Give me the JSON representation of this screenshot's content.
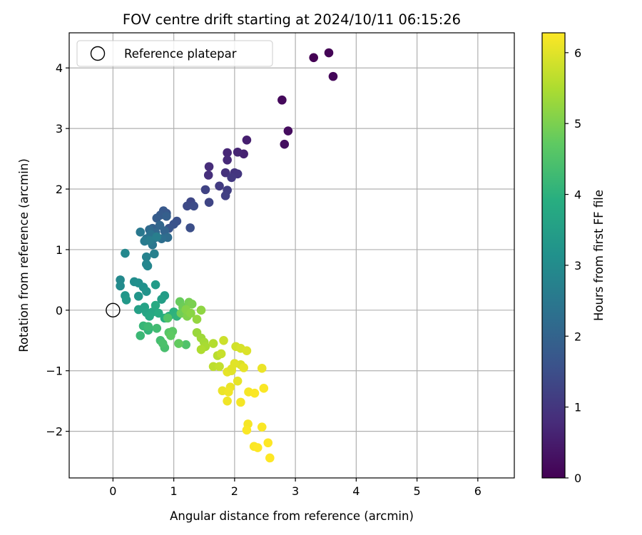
{
  "chart_data": {
    "type": "scatter",
    "title": "FOV centre drift starting at 2024/10/11 06:15:26",
    "xlabel": "Angular distance from reference (arcmin)",
    "ylabel": "Rotation from reference (arcmin)",
    "xlim": [
      -0.72,
      6.6
    ],
    "ylim": [
      -2.77,
      4.58
    ],
    "xticks": [
      0,
      1,
      2,
      3,
      4,
      5,
      6
    ],
    "yticks": [
      -2,
      -1,
      0,
      1,
      2,
      3,
      4
    ],
    "xtick_labels": [
      "0",
      "1",
      "2",
      "3",
      "4",
      "5",
      "6"
    ],
    "ytick_labels": [
      "−2",
      "−1",
      "0",
      "1",
      "2",
      "3",
      "4"
    ],
    "grid": true,
    "legend": {
      "placement": "top-left",
      "entries": [
        {
          "label": "Reference platepar",
          "marker": "open-circle"
        }
      ]
    },
    "reference_point": {
      "x": 0,
      "y": 0
    },
    "colorbar": {
      "label": "Hours from first FF file",
      "colormap": "viridis",
      "range": [
        0,
        6.28
      ],
      "ticks": [
        0,
        1,
        2,
        3,
        4,
        5,
        6
      ],
      "tick_labels": [
        "0",
        "1",
        "2",
        "3",
        "4",
        "5",
        "6"
      ]
    },
    "colors": {
      "viridis": [
        "#440154",
        "#472c7a",
        "#3b528b",
        "#2c728e",
        "#21918c",
        "#28ae80",
        "#5ec962",
        "#addc30",
        "#fde725"
      ]
    },
    "points": [
      [
        3.3,
        4.17,
        0.0
      ],
      [
        3.55,
        4.25,
        0.05
      ],
      [
        3.62,
        3.86,
        0.1
      ],
      [
        2.78,
        3.47,
        0.15
      ],
      [
        2.88,
        2.96,
        0.2
      ],
      [
        2.82,
        2.74,
        0.25
      ],
      [
        2.2,
        2.81,
        0.55
      ],
      [
        2.15,
        2.58,
        0.6
      ],
      [
        2.05,
        2.61,
        0.65
      ],
      [
        1.88,
        2.6,
        0.7
      ],
      [
        1.88,
        2.48,
        0.75
      ],
      [
        1.58,
        2.37,
        0.8
      ],
      [
        1.57,
        2.23,
        0.85
      ],
      [
        1.85,
        2.27,
        0.9
      ],
      [
        2.0,
        2.27,
        0.95
      ],
      [
        2.05,
        2.25,
        1.0
      ],
      [
        1.95,
        2.19,
        1.05
      ],
      [
        1.75,
        2.05,
        1.1
      ],
      [
        1.88,
        1.98,
        1.15
      ],
      [
        1.85,
        1.89,
        1.2
      ],
      [
        1.52,
        1.99,
        1.25
      ],
      [
        1.58,
        1.78,
        1.3
      ],
      [
        1.28,
        1.79,
        1.35
      ],
      [
        1.22,
        1.72,
        1.4
      ],
      [
        1.33,
        1.72,
        1.45
      ],
      [
        1.27,
        1.36,
        1.5
      ],
      [
        1.05,
        1.47,
        1.55
      ],
      [
        1.0,
        1.42,
        1.6
      ],
      [
        0.92,
        1.35,
        1.65
      ],
      [
        0.88,
        1.6,
        1.7
      ],
      [
        0.83,
        1.64,
        1.75
      ],
      [
        0.78,
        1.57,
        1.8
      ],
      [
        0.72,
        1.52,
        1.85
      ],
      [
        0.88,
        1.55,
        1.9
      ],
      [
        0.65,
        1.35,
        1.95
      ],
      [
        0.85,
        1.31,
        2.0
      ],
      [
        0.77,
        1.4,
        2.05
      ],
      [
        0.7,
        1.28,
        2.1
      ],
      [
        0.6,
        1.33,
        2.15
      ],
      [
        0.9,
        1.2,
        2.2
      ],
      [
        0.8,
        1.18,
        2.25
      ],
      [
        0.7,
        1.2,
        2.3
      ],
      [
        0.62,
        1.25,
        2.35
      ],
      [
        0.55,
        1.18,
        2.4
      ],
      [
        0.65,
        1.08,
        2.45
      ],
      [
        0.45,
        1.29,
        2.5
      ],
      [
        0.52,
        1.14,
        2.55
      ],
      [
        0.6,
        1.15,
        2.6
      ],
      [
        0.72,
        1.21,
        2.65
      ],
      [
        0.68,
        0.93,
        2.7
      ],
      [
        0.55,
        0.88,
        2.75
      ],
      [
        0.55,
        0.76,
        2.8
      ],
      [
        0.57,
        0.73,
        2.85
      ],
      [
        0.2,
        0.94,
        2.9
      ],
      [
        0.12,
        0.5,
        2.95
      ],
      [
        0.12,
        0.4,
        3.0
      ],
      [
        0.35,
        0.47,
        3.05
      ],
      [
        0.42,
        0.45,
        3.1
      ],
      [
        0.5,
        0.38,
        3.15
      ],
      [
        0.55,
        0.31,
        3.2
      ],
      [
        0.42,
        0.23,
        3.25
      ],
      [
        0.2,
        0.24,
        3.3
      ],
      [
        0.22,
        0.17,
        3.35
      ],
      [
        0.7,
        0.42,
        3.4
      ],
      [
        0.85,
        0.24,
        3.45
      ],
      [
        0.8,
        0.18,
        3.5
      ],
      [
        0.42,
        0.01,
        3.55
      ],
      [
        0.52,
        0.05,
        3.6
      ],
      [
        0.55,
        -0.04,
        3.65
      ],
      [
        0.65,
        -0.03,
        3.7
      ],
      [
        0.6,
        -0.1,
        3.75
      ],
      [
        0.7,
        0.08,
        3.8
      ],
      [
        0.75,
        -0.05,
        3.85
      ],
      [
        0.85,
        -0.13,
        3.9
      ],
      [
        0.92,
        -0.1,
        3.95
      ],
      [
        1.0,
        -0.03,
        4.0
      ],
      [
        1.05,
        -0.1,
        4.05
      ],
      [
        0.58,
        -0.33,
        4.1
      ],
      [
        0.5,
        -0.26,
        4.15
      ],
      [
        0.45,
        -0.42,
        4.2
      ],
      [
        0.58,
        -0.27,
        4.25
      ],
      [
        0.72,
        -0.3,
        4.3
      ],
      [
        0.78,
        -0.5,
        4.35
      ],
      [
        0.85,
        -0.62,
        4.4
      ],
      [
        0.82,
        -0.55,
        4.45
      ],
      [
        1.2,
        -0.57,
        4.5
      ],
      [
        0.9,
        -0.13,
        4.55
      ],
      [
        0.92,
        -0.37,
        4.6
      ],
      [
        0.98,
        -0.35,
        4.65
      ],
      [
        0.95,
        -0.42,
        4.7
      ],
      [
        1.08,
        -0.55,
        4.75
      ],
      [
        1.1,
        0.14,
        4.8
      ],
      [
        1.15,
        0.05,
        4.85
      ],
      [
        1.12,
        -0.05,
        4.9
      ],
      [
        1.25,
        0.13,
        4.95
      ],
      [
        1.3,
        0.1,
        5.0
      ],
      [
        1.22,
        -0.1,
        5.05
      ],
      [
        1.2,
        0.01,
        5.1
      ],
      [
        1.28,
        -0.05,
        5.15
      ],
      [
        1.45,
        0.0,
        5.2
      ],
      [
        1.38,
        -0.15,
        5.25
      ],
      [
        1.38,
        -0.37,
        5.3
      ],
      [
        1.45,
        -0.46,
        5.35
      ],
      [
        1.5,
        -0.53,
        5.4
      ],
      [
        1.52,
        -0.6,
        5.45
      ],
      [
        1.45,
        -0.65,
        5.5
      ],
      [
        1.65,
        -0.55,
        5.55
      ],
      [
        1.72,
        -0.75,
        5.6
      ],
      [
        1.65,
        -0.93,
        5.65
      ],
      [
        1.75,
        -0.93,
        5.7
      ],
      [
        1.78,
        -0.72,
        5.75
      ],
      [
        1.82,
        -0.5,
        5.8
      ],
      [
        2.02,
        -0.6,
        5.85
      ],
      [
        2.1,
        -0.63,
        5.9
      ],
      [
        2.2,
        -0.67,
        5.95
      ],
      [
        2.1,
        -0.9,
        5.95
      ],
      [
        2.0,
        -0.88,
        6.0
      ],
      [
        1.95,
        -1.0,
        6.0
      ],
      [
        1.88,
        -1.02,
        6.05
      ],
      [
        2.05,
        -1.17,
        6.05
      ],
      [
        2.15,
        -0.95,
        6.05
      ],
      [
        2.45,
        -0.96,
        6.1
      ],
      [
        1.8,
        -1.33,
        6.1
      ],
      [
        1.93,
        -1.27,
        6.1
      ],
      [
        1.9,
        -1.35,
        6.15
      ],
      [
        1.88,
        -1.5,
        6.15
      ],
      [
        2.1,
        -1.52,
        6.2
      ],
      [
        2.23,
        -1.35,
        6.2
      ],
      [
        2.33,
        -1.37,
        6.25
      ],
      [
        2.48,
        -1.29,
        6.25
      ],
      [
        2.22,
        -1.88,
        6.2
      ],
      [
        2.2,
        -1.98,
        6.25
      ],
      [
        2.45,
        -1.93,
        6.25
      ],
      [
        2.32,
        -2.25,
        6.25
      ],
      [
        2.38,
        -2.27,
        6.28
      ],
      [
        2.55,
        -2.19,
        6.28
      ],
      [
        2.58,
        -2.44,
        6.28
      ],
      [
        1.95,
        -0.97,
        6.0
      ]
    ]
  }
}
